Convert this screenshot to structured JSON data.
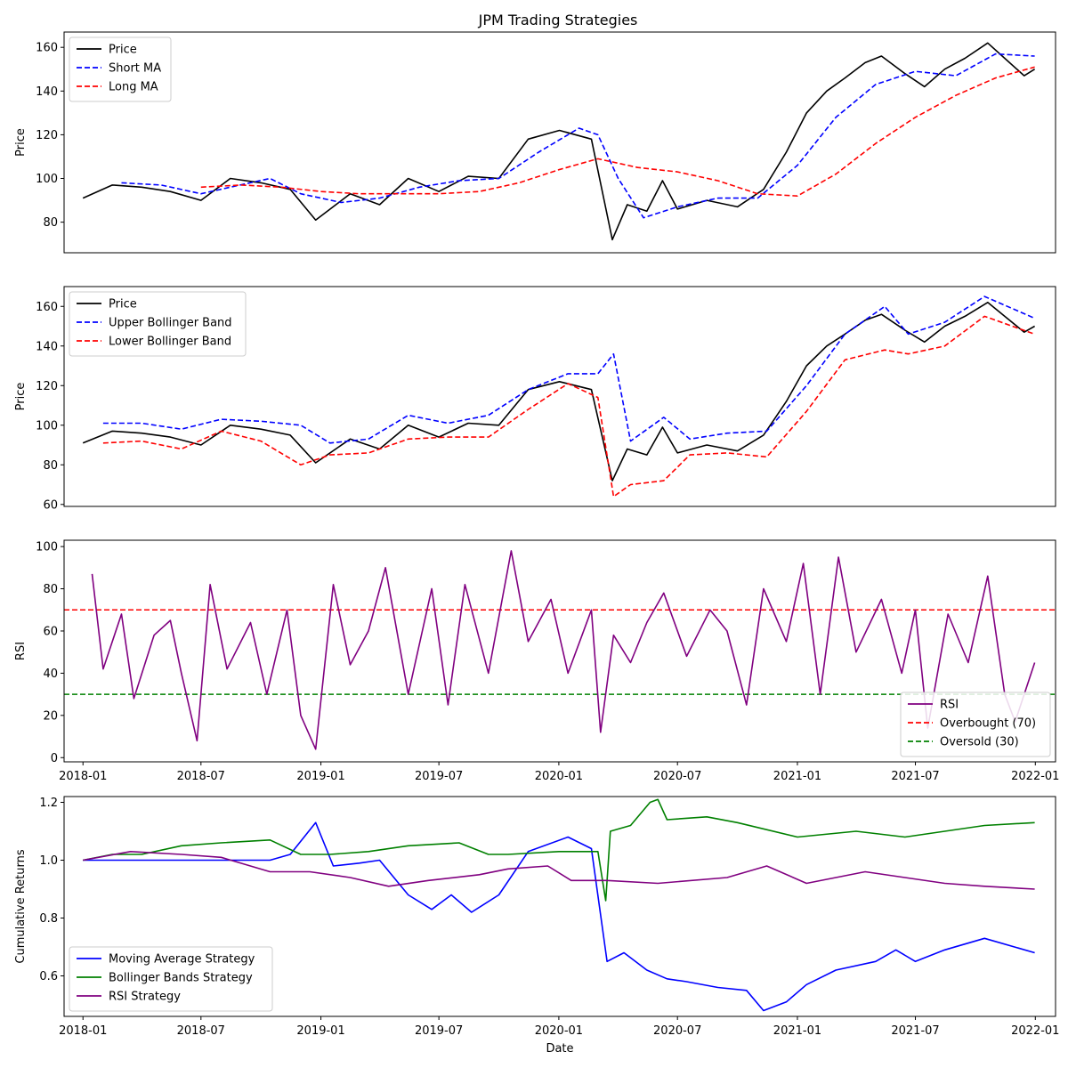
{
  "title": "JPM Trading Strategies",
  "x_tick_labels": [
    "2018-01",
    "2018-07",
    "2019-01",
    "2019-07",
    "2020-01",
    "2020-07",
    "2021-01",
    "2021-07",
    "2022-01"
  ],
  "x_axis_label": "Date",
  "chart_data": [
    {
      "type": "line",
      "title": "JPM Trading Strategies",
      "ylabel": "Price",
      "ylim": [
        66,
        167
      ],
      "yticks": [
        80,
        100,
        120,
        140,
        160
      ],
      "xlim": [
        "2017-12-03",
        "2022-02-01"
      ],
      "grid": false,
      "legend_position": "upper-left",
      "series": [
        {
          "name": "Price",
          "color": "#000000",
          "dash": false,
          "x": [
            "2018-01-01",
            "2018-02-15",
            "2018-04-01",
            "2018-05-15",
            "2018-07-01",
            "2018-08-15",
            "2018-10-01",
            "2018-11-15",
            "2018-12-24",
            "2019-02-15",
            "2019-04-01",
            "2019-05-15",
            "2019-07-01",
            "2019-08-15",
            "2019-10-01",
            "2019-11-15",
            "2020-01-02",
            "2020-02-20",
            "2020-03-23",
            "2020-04-15",
            "2020-05-15",
            "2020-06-08",
            "2020-07-01",
            "2020-08-15",
            "2020-10-01",
            "2020-11-10",
            "2020-12-15",
            "2021-01-15",
            "2021-02-15",
            "2021-03-15",
            "2021-04-15",
            "2021-05-10",
            "2021-06-15",
            "2021-07-15",
            "2021-08-15",
            "2021-09-15",
            "2021-10-20",
            "2021-11-15",
            "2021-12-15",
            "2021-12-31"
          ],
          "y": [
            91,
            97,
            96,
            94,
            90,
            100,
            98,
            95,
            81,
            93,
            88,
            100,
            94,
            101,
            100,
            118,
            122,
            118,
            72,
            88,
            85,
            99,
            86,
            90,
            87,
            95,
            112,
            130,
            140,
            146,
            153,
            156,
            148,
            142,
            150,
            155,
            162,
            155,
            147,
            150
          ]
        },
        {
          "name": "Short MA",
          "color": "#0000ff",
          "dash": true,
          "x": [
            "2018-03-01",
            "2018-05-01",
            "2018-07-01",
            "2018-08-15",
            "2018-10-15",
            "2018-12-01",
            "2019-02-01",
            "2019-04-01",
            "2019-06-01",
            "2019-08-01",
            "2019-10-01",
            "2019-12-01",
            "2020-02-01",
            "2020-03-01",
            "2020-04-01",
            "2020-05-10",
            "2020-07-01",
            "2020-09-01",
            "2020-11-01",
            "2021-01-01",
            "2021-03-01",
            "2021-05-01",
            "2021-07-01",
            "2021-09-01",
            "2021-11-01",
            "2021-12-31"
          ],
          "y": [
            98,
            97,
            93,
            96,
            100,
            93,
            89,
            91,
            96,
            99,
            100,
            112,
            123,
            120,
            100,
            82,
            87,
            91,
            91,
            106,
            128,
            143,
            149,
            147,
            157,
            156
          ]
        },
        {
          "name": "Long MA",
          "color": "#ff0000",
          "dash": true,
          "x": [
            "2018-07-01",
            "2018-09-01",
            "2018-11-01",
            "2019-01-01",
            "2019-03-01",
            "2019-05-01",
            "2019-07-01",
            "2019-09-01",
            "2019-11-01",
            "2020-01-01",
            "2020-03-01",
            "2020-05-01",
            "2020-07-01",
            "2020-09-01",
            "2020-11-01",
            "2021-01-01",
            "2021-03-01",
            "2021-05-01",
            "2021-07-01",
            "2021-09-01",
            "2021-11-01",
            "2021-12-31"
          ],
          "y": [
            96,
            97,
            96,
            94,
            93,
            93,
            93,
            94,
            98,
            104,
            109,
            105,
            103,
            99,
            93,
            92,
            102,
            116,
            128,
            138,
            146,
            151
          ]
        }
      ]
    },
    {
      "type": "line",
      "ylabel": "Price",
      "ylim": [
        59,
        170
      ],
      "yticks": [
        60,
        80,
        100,
        120,
        140,
        160
      ],
      "xlim": [
        "2017-12-03",
        "2022-02-01"
      ],
      "grid": false,
      "legend_position": "upper-left",
      "series": [
        {
          "name": "Price",
          "color": "#000000",
          "dash": false,
          "x": [
            "2018-01-01",
            "2018-02-15",
            "2018-04-01",
            "2018-05-15",
            "2018-07-01",
            "2018-08-15",
            "2018-10-01",
            "2018-11-15",
            "2018-12-24",
            "2019-02-15",
            "2019-04-01",
            "2019-05-15",
            "2019-07-01",
            "2019-08-15",
            "2019-10-01",
            "2019-11-15",
            "2020-01-02",
            "2020-02-20",
            "2020-03-23",
            "2020-04-15",
            "2020-05-15",
            "2020-06-08",
            "2020-07-01",
            "2020-08-15",
            "2020-10-01",
            "2020-11-10",
            "2020-12-15",
            "2021-01-15",
            "2021-02-15",
            "2021-03-15",
            "2021-04-15",
            "2021-05-10",
            "2021-06-15",
            "2021-07-15",
            "2021-08-15",
            "2021-09-15",
            "2021-10-20",
            "2021-11-15",
            "2021-12-15",
            "2021-12-31"
          ],
          "y": [
            91,
            97,
            96,
            94,
            90,
            100,
            98,
            95,
            81,
            93,
            88,
            100,
            94,
            101,
            100,
            118,
            122,
            118,
            72,
            88,
            85,
            99,
            86,
            90,
            87,
            95,
            112,
            130,
            140,
            146,
            153,
            156,
            148,
            142,
            150,
            155,
            162,
            155,
            147,
            150
          ]
        },
        {
          "name": "Upper Bollinger Band",
          "color": "#0000ff",
          "dash": true,
          "x": [
            "2018-02-01",
            "2018-04-01",
            "2018-06-01",
            "2018-08-01",
            "2018-10-01",
            "2018-12-01",
            "2019-01-15",
            "2019-03-15",
            "2019-05-15",
            "2019-07-15",
            "2019-09-15",
            "2019-11-15",
            "2020-01-15",
            "2020-03-01",
            "2020-03-25",
            "2020-04-20",
            "2020-06-10",
            "2020-07-20",
            "2020-09-15",
            "2020-11-15",
            "2021-01-15",
            "2021-03-15",
            "2021-05-15",
            "2021-06-20",
            "2021-08-15",
            "2021-10-15",
            "2021-12-31"
          ],
          "y": [
            101,
            101,
            98,
            103,
            102,
            100,
            91,
            93,
            105,
            101,
            105,
            118,
            126,
            126,
            136,
            92,
            104,
            93,
            96,
            97,
            120,
            146,
            160,
            146,
            152,
            165,
            154
          ]
        },
        {
          "name": "Lower Bollinger Band",
          "color": "#ff0000",
          "dash": true,
          "x": [
            "2018-02-01",
            "2018-04-01",
            "2018-06-01",
            "2018-08-01",
            "2018-10-01",
            "2018-12-01",
            "2019-01-15",
            "2019-03-15",
            "2019-05-15",
            "2019-07-15",
            "2019-09-15",
            "2019-11-15",
            "2020-01-15",
            "2020-03-01",
            "2020-03-25",
            "2020-04-20",
            "2020-06-10",
            "2020-07-20",
            "2020-09-15",
            "2020-11-15",
            "2021-01-15",
            "2021-03-15",
            "2021-05-15",
            "2021-06-20",
            "2021-08-15",
            "2021-10-15",
            "2021-12-31"
          ],
          "y": [
            91,
            92,
            88,
            97,
            92,
            80,
            85,
            86,
            93,
            94,
            94,
            108,
            121,
            114,
            64,
            70,
            72,
            85,
            86,
            84,
            107,
            133,
            138,
            136,
            140,
            155,
            146
          ]
        }
      ]
    },
    {
      "type": "line",
      "ylabel": "RSI",
      "ylim": [
        -2,
        103
      ],
      "yticks": [
        0,
        20,
        40,
        60,
        80,
        100
      ],
      "xlim": [
        "2017-12-03",
        "2022-02-01"
      ],
      "grid": false,
      "legend_position": "lower-right",
      "series": [
        {
          "name": "RSI",
          "color": "#800080",
          "dash": false,
          "x": [
            "2018-01-15",
            "2018-02-01",
            "2018-03-01",
            "2018-03-20",
            "2018-04-20",
            "2018-05-15",
            "2018-06-01",
            "2018-06-25",
            "2018-07-15",
            "2018-08-10",
            "2018-09-15",
            "2018-10-10",
            "2018-11-10",
            "2018-12-01",
            "2018-12-24",
            "2019-01-20",
            "2019-02-15",
            "2019-03-15",
            "2019-04-10",
            "2019-05-15",
            "2019-06-20",
            "2019-07-15",
            "2019-08-10",
            "2019-09-15",
            "2019-10-20",
            "2019-11-15",
            "2019-12-20",
            "2020-01-15",
            "2020-02-20",
            "2020-03-05",
            "2020-03-25",
            "2020-04-20",
            "2020-05-15",
            "2020-06-10",
            "2020-07-15",
            "2020-08-20",
            "2020-09-15",
            "2020-10-15",
            "2020-11-10",
            "2020-12-15",
            "2021-01-10",
            "2021-02-05",
            "2021-03-05",
            "2021-04-01",
            "2021-05-10",
            "2021-06-10",
            "2021-07-01",
            "2021-07-20",
            "2021-08-20",
            "2021-09-20",
            "2021-10-20",
            "2021-11-15",
            "2021-12-01",
            "2021-12-31"
          ],
          "y": [
            87,
            42,
            68,
            28,
            58,
            65,
            40,
            8,
            82,
            42,
            64,
            30,
            70,
            20,
            4,
            82,
            44,
            60,
            90,
            30,
            80,
            25,
            82,
            40,
            98,
            55,
            75,
            40,
            70,
            12,
            58,
            45,
            64,
            78,
            48,
            70,
            60,
            25,
            80,
            55,
            92,
            30,
            95,
            50,
            75,
            40,
            70,
            14,
            68,
            45,
            86,
            30,
            17,
            45
          ]
        }
      ],
      "reference_lines": [
        {
          "name": "Overbought (70)",
          "y": 70,
          "color": "#ff0000"
        },
        {
          "name": "Oversold (30)",
          "y": 30,
          "color": "#008000"
        }
      ]
    },
    {
      "type": "line",
      "ylabel": "Cumulative Returns",
      "xlabel": "Date",
      "ylim": [
        0.46,
        1.22
      ],
      "yticks": [
        0.6,
        0.8,
        1.0,
        1.2
      ],
      "ytick_labels": [
        "0.6",
        "0.8",
        "1.0",
        "1.2"
      ],
      "xlim": [
        "2017-12-03",
        "2022-02-01"
      ],
      "grid": false,
      "legend_position": "lower-left",
      "series": [
        {
          "name": "Moving Average Strategy",
          "color": "#0000ff",
          "dash": false,
          "x": [
            "2018-01-01",
            "2018-10-15",
            "2018-11-15",
            "2018-12-24",
            "2019-01-20",
            "2019-03-01",
            "2019-04-01",
            "2019-05-15",
            "2019-06-20",
            "2019-07-20",
            "2019-08-20",
            "2019-10-01",
            "2019-11-15",
            "2020-01-15",
            "2020-02-20",
            "2020-03-15",
            "2020-04-10",
            "2020-05-15",
            "2020-06-15",
            "2020-07-15",
            "2020-09-01",
            "2020-10-15",
            "2020-11-10",
            "2020-12-15",
            "2021-01-15",
            "2021-03-01",
            "2021-05-01",
            "2021-06-01",
            "2021-07-01",
            "2021-08-15",
            "2021-10-15",
            "2021-12-31"
          ],
          "y": [
            1.0,
            1.0,
            1.02,
            1.13,
            0.98,
            0.99,
            1.0,
            0.88,
            0.83,
            0.88,
            0.82,
            0.88,
            1.03,
            1.08,
            1.04,
            0.65,
            0.68,
            0.62,
            0.59,
            0.58,
            0.56,
            0.55,
            0.48,
            0.51,
            0.57,
            0.62,
            0.65,
            0.69,
            0.65,
            0.69,
            0.73,
            0.68
          ]
        },
        {
          "name": "Bollinger Bands Strategy",
          "color": "#008000",
          "dash": false,
          "x": [
            "2018-01-01",
            "2018-02-15",
            "2018-04-01",
            "2018-06-01",
            "2018-08-01",
            "2018-10-15",
            "2018-12-01",
            "2019-01-15",
            "2019-03-15",
            "2019-05-15",
            "2019-08-01",
            "2019-09-15",
            "2019-10-15",
            "2020-01-01",
            "2020-03-01",
            "2020-03-13",
            "2020-03-20",
            "2020-04-20",
            "2020-05-20",
            "2020-06-01",
            "2020-06-15",
            "2020-08-15",
            "2020-10-01",
            "2021-01-01",
            "2021-04-01",
            "2021-06-15",
            "2021-08-15",
            "2021-10-15",
            "2021-12-31"
          ],
          "y": [
            1.0,
            1.02,
            1.02,
            1.05,
            1.06,
            1.07,
            1.02,
            1.02,
            1.03,
            1.05,
            1.06,
            1.02,
            1.02,
            1.03,
            1.03,
            0.86,
            1.1,
            1.12,
            1.2,
            1.21,
            1.14,
            1.15,
            1.13,
            1.08,
            1.1,
            1.08,
            1.1,
            1.12,
            1.13
          ]
        },
        {
          "name": "RSI Strategy",
          "color": "#800080",
          "dash": false,
          "x": [
            "2018-01-01",
            "2018-03-15",
            "2018-06-01",
            "2018-08-01",
            "2018-10-15",
            "2018-12-15",
            "2019-02-15",
            "2019-04-15",
            "2019-06-15",
            "2019-09-01",
            "2019-10-15",
            "2019-12-15",
            "2020-01-20",
            "2020-03-15",
            "2020-06-01",
            "2020-09-15",
            "2020-11-15",
            "2021-01-15",
            "2021-04-15",
            "2021-06-15",
            "2021-08-15",
            "2021-10-15",
            "2021-12-31"
          ],
          "y": [
            1.0,
            1.03,
            1.02,
            1.01,
            0.96,
            0.96,
            0.94,
            0.91,
            0.93,
            0.95,
            0.97,
            0.98,
            0.93,
            0.93,
            0.92,
            0.94,
            0.98,
            0.92,
            0.96,
            0.94,
            0.92,
            0.91,
            0.9
          ]
        }
      ]
    }
  ]
}
